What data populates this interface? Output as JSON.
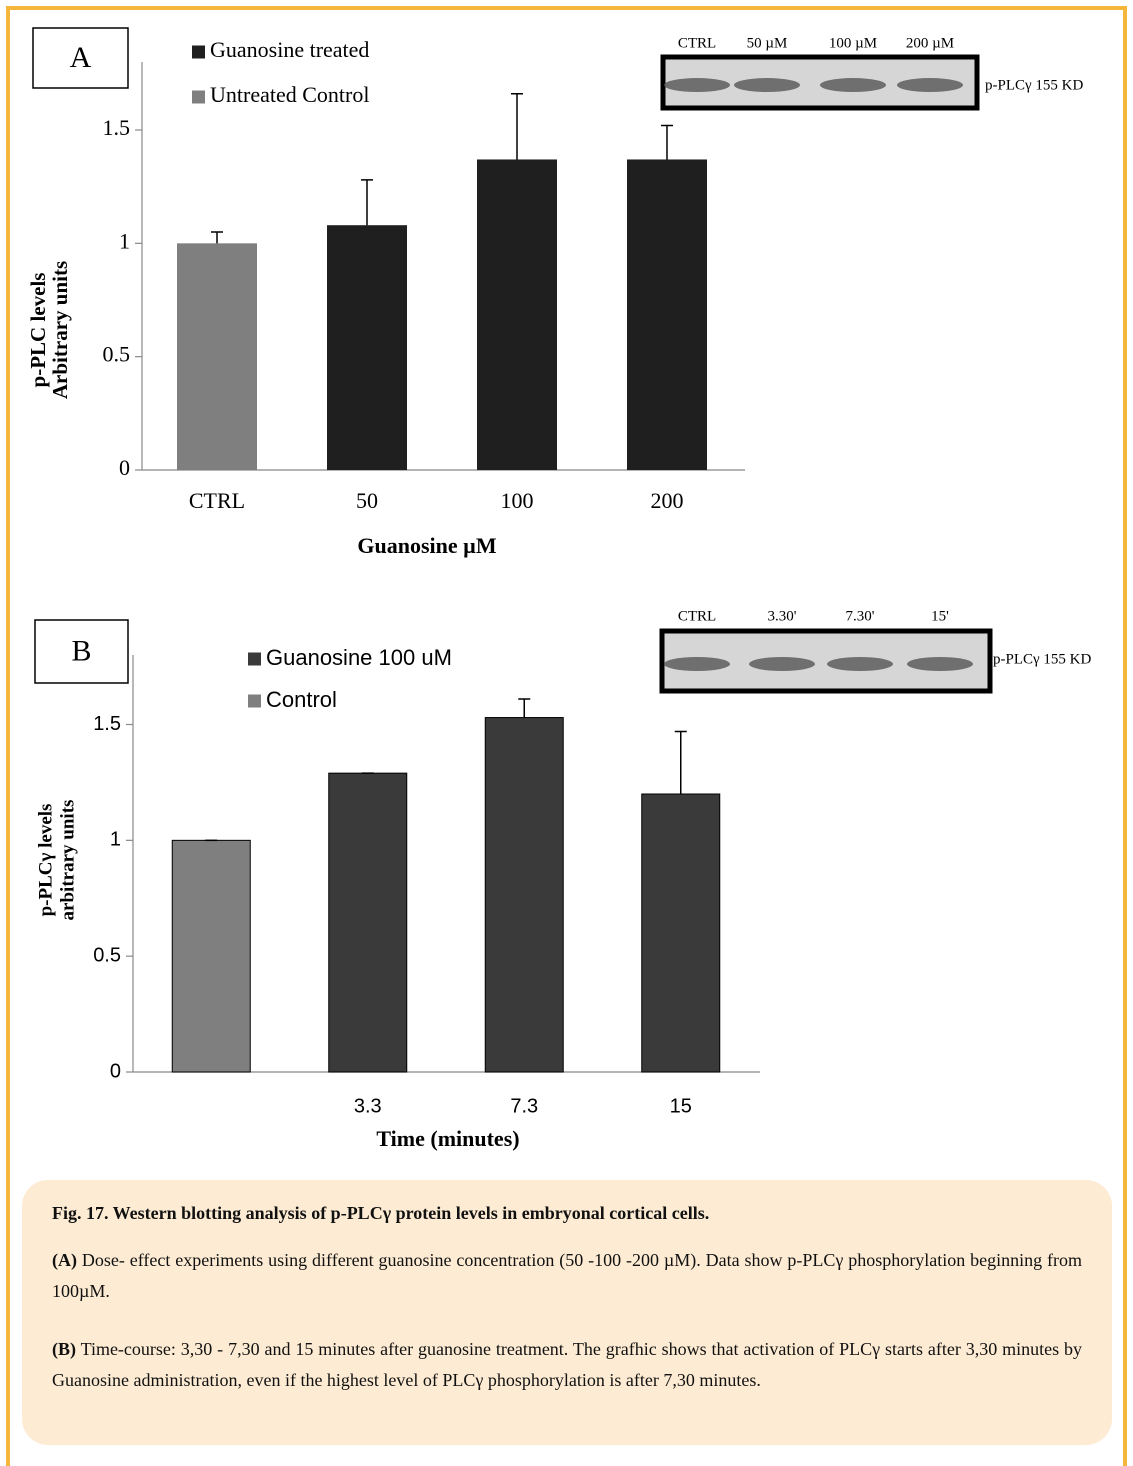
{
  "chart_data": [
    {
      "type": "bar",
      "panel": "A",
      "y_label": [
        "p-PLC levels",
        "Arbitrary units"
      ],
      "x_label": "Guanosine µM",
      "categories": [
        "CTRL",
        "50",
        "100",
        "200"
      ],
      "series": [
        {
          "name": "Guanosine treated",
          "color": "#1f1f1f",
          "values": [
            null,
            1.08,
            1.37,
            1.37
          ],
          "errors": [
            null,
            0.2,
            0.29,
            0.15
          ]
        },
        {
          "name": "Untreated Control",
          "color": "#7f7f7f",
          "values": [
            1.0,
            null,
            null,
            null
          ],
          "errors": [
            0.05,
            null,
            null,
            null
          ]
        }
      ],
      "ylim": [
        0,
        1.8
      ],
      "yticks": [
        0,
        0.5,
        1,
        1.5
      ],
      "blot": {
        "lanes": [
          "CTRL",
          "50 µM",
          "100 µM",
          "200 µM"
        ],
        "label": "p-PLCγ  155 KD"
      }
    },
    {
      "type": "bar",
      "panel": "B",
      "y_label": [
        "p-PLCγ levels",
        "arbitrary units"
      ],
      "x_label": "Time (minutes)",
      "categories": [
        null,
        "3.3",
        "7.3",
        "15"
      ],
      "series": [
        {
          "name": "Guanosine 100 uM",
          "color": "#3a3a3a",
          "values": [
            null,
            1.29,
            1.53,
            1.2
          ],
          "errors": [
            null,
            0,
            0.08,
            0.27
          ]
        },
        {
          "name": "Control",
          "color": "#7f7f7f",
          "values": [
            1.0,
            null,
            null,
            null
          ],
          "errors": [
            0,
            null,
            null,
            null
          ]
        }
      ],
      "ylim": [
        0,
        1.8
      ],
      "yticks": [
        0,
        0.5,
        1,
        1.5
      ],
      "blot": {
        "lanes": [
          "CTRL",
          "3.30'",
          "7.30'",
          "15'"
        ],
        "label": "p-PLCγ 155 KD"
      }
    }
  ],
  "caption": {
    "title": "Fig. 17. Western blotting analysis of p-PLCγ protein levels in embryonal cortical cells.",
    "paragraphs": [
      {
        "label": "(A)",
        "text": "Dose- effect experiments using different guanosine concentration (50 -100 -200 µM). Data show  p-PLCγ phosphorylation beginning from 100µM."
      },
      {
        "label": "(B)",
        "text": "Time-course: 3,30 - 7,30 and 15 minutes after guanosine treatment. The grafhic shows that activation of PLCγ starts  after 3,30 minutes by Guanosine administration, even if the highest level of PLCγ phosphorylation  is after 7,30 minutes."
      }
    ]
  }
}
